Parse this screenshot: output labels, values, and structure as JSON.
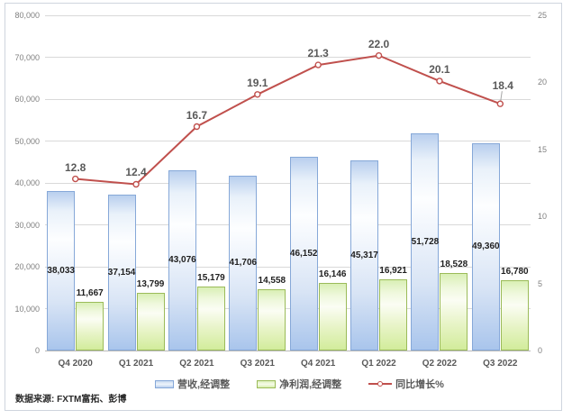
{
  "chart": {
    "source_note": "数据来源: FXTM富拓、彭博",
    "legend": [
      {
        "label": "营收,经调整"
      },
      {
        "label": "净利润,经调整"
      },
      {
        "label": "同比增长%"
      }
    ]
  },
  "chart_data": {
    "type": "combo (bar + line, dual axis)",
    "categories": [
      "Q4 2020",
      "Q1 2021",
      "Q2 2021",
      "Q3 2021",
      "Q4 2021",
      "Q1 2022",
      "Q2 2022",
      "Q3 2022"
    ],
    "series": [
      {
        "name": "营收,经调整",
        "type": "bar",
        "axis": "left",
        "fill": "#a9c5ec",
        "border": "#86a8d8",
        "label_position": "inside-center",
        "values": [
          38033,
          37154,
          43076,
          41706,
          46152,
          45317,
          51728,
          49360
        ],
        "labels": [
          "38,033",
          "37,154",
          "43,076",
          "41,706",
          "46,152",
          "45,317",
          "51,728",
          "49,360"
        ]
      },
      {
        "name": "净利润,经调整",
        "type": "bar",
        "axis": "left",
        "fill": "#d2ec9b",
        "border": "#9bbb59",
        "label_position": "outside-end",
        "values": [
          11667,
          13799,
          15179,
          14558,
          16146,
          16921,
          18528,
          16780
        ],
        "labels": [
          "11,667",
          "13,799",
          "15,179",
          "14,558",
          "16,146",
          "16,921",
          "18,528",
          "16,780"
        ]
      },
      {
        "name": "同比增长%",
        "type": "line",
        "axis": "right",
        "color": "#c0504d",
        "marker": "open-circle",
        "label_position": "above",
        "values": [
          12.8,
          12.4,
          16.7,
          19.1,
          21.3,
          22.0,
          20.1,
          18.4
        ],
        "labels": [
          "12.8",
          "12.4",
          "16.7",
          "19.1",
          "21.3",
          "22.0",
          "20.1",
          "18.4"
        ]
      }
    ],
    "left_axis": {
      "min": 0,
      "max": 80000,
      "step": 10000,
      "tick_labels": [
        "0",
        "10,000",
        "20,000",
        "30,000",
        "40,000",
        "50,000",
        "60,000",
        "70,000",
        "80,000"
      ]
    },
    "right_axis": {
      "min": 0,
      "max": 25,
      "step": 5,
      "tick_labels": [
        "0",
        "5",
        "10",
        "15",
        "20",
        "25"
      ]
    },
    "grid": "horizontal",
    "legend_position": "bottom",
    "colors": {
      "grid": "#d9d9d9",
      "axis_text": "#808080",
      "category_text": "#595959",
      "data_label_text": "#1f1f1f",
      "line_label_text": "#595959"
    }
  }
}
